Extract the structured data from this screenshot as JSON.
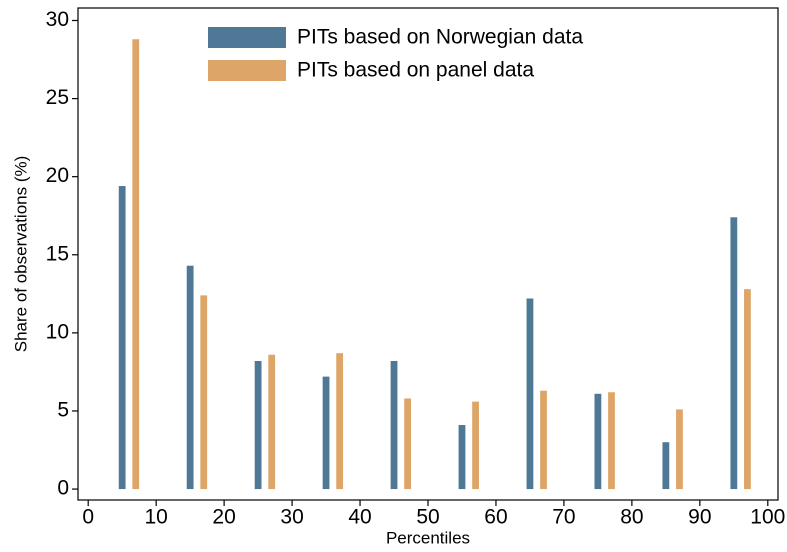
{
  "chart_data": {
    "type": "bar",
    "xlabel": "Percentiles",
    "ylabel": "Share of observations (%)",
    "xlim": [
      -1.5,
      101.5
    ],
    "ylim": [
      -0.7,
      30.8
    ],
    "xticks": [
      0,
      10,
      20,
      30,
      40,
      50,
      60,
      70,
      80,
      90,
      100
    ],
    "yticks": [
      0,
      5,
      10,
      15,
      20,
      25,
      30
    ],
    "series": [
      {
        "name": "PITs based on Norwegian data",
        "color": "#4e7896",
        "x": [
          5,
          15,
          25,
          35,
          45,
          55,
          65,
          75,
          85,
          95
        ],
        "values": [
          19.4,
          14.3,
          8.2,
          7.2,
          8.2,
          4.1,
          12.2,
          6.1,
          3.0,
          17.4
        ]
      },
      {
        "name": "PITs based on panel data",
        "color": "#dda668",
        "x": [
          7,
          17,
          27,
          37,
          47,
          57,
          67,
          77,
          87,
          97
        ],
        "values": [
          28.8,
          12.4,
          8.6,
          8.7,
          5.8,
          5.6,
          6.3,
          6.2,
          5.1,
          12.8
        ]
      }
    ]
  }
}
